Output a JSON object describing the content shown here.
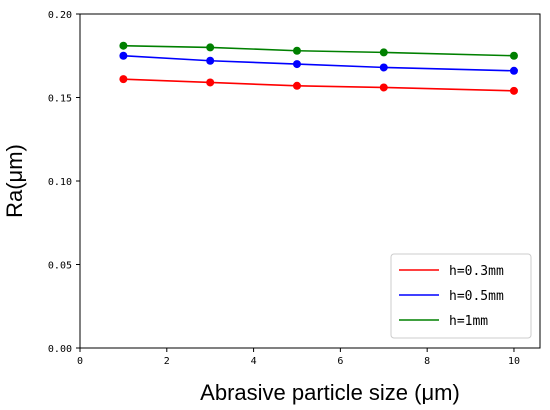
{
  "chart_data": {
    "type": "line",
    "title": "",
    "xlabel": "Abrasive particle size (μm)",
    "ylabel": "Ra(μm)",
    "xlim": [
      0,
      10.6
    ],
    "ylim": [
      0.0,
      0.2
    ],
    "x_ticks": [
      0,
      2,
      4,
      6,
      8,
      10
    ],
    "x_tick_labels": [
      "0",
      "2",
      "4",
      "6",
      "8",
      "10"
    ],
    "y_ticks": [
      0.0,
      0.05,
      0.1,
      0.15,
      0.2
    ],
    "y_tick_labels": [
      "0.00",
      "0.05",
      "0.10",
      "0.15",
      "0.20"
    ],
    "grid": false,
    "legend_position": "bottom-right",
    "x": [
      1,
      3,
      5,
      7,
      10
    ],
    "series": [
      {
        "name": "h=0.3mm",
        "color": "#ff0000",
        "values": [
          0.161,
          0.159,
          0.157,
          0.156,
          0.154
        ]
      },
      {
        "name": "h=0.5mm",
        "color": "#0000ff",
        "values": [
          0.175,
          0.172,
          0.17,
          0.168,
          0.166
        ]
      },
      {
        "name": "h=1mm",
        "color": "#008000",
        "values": [
          0.181,
          0.18,
          0.178,
          0.177,
          0.175
        ]
      }
    ]
  }
}
